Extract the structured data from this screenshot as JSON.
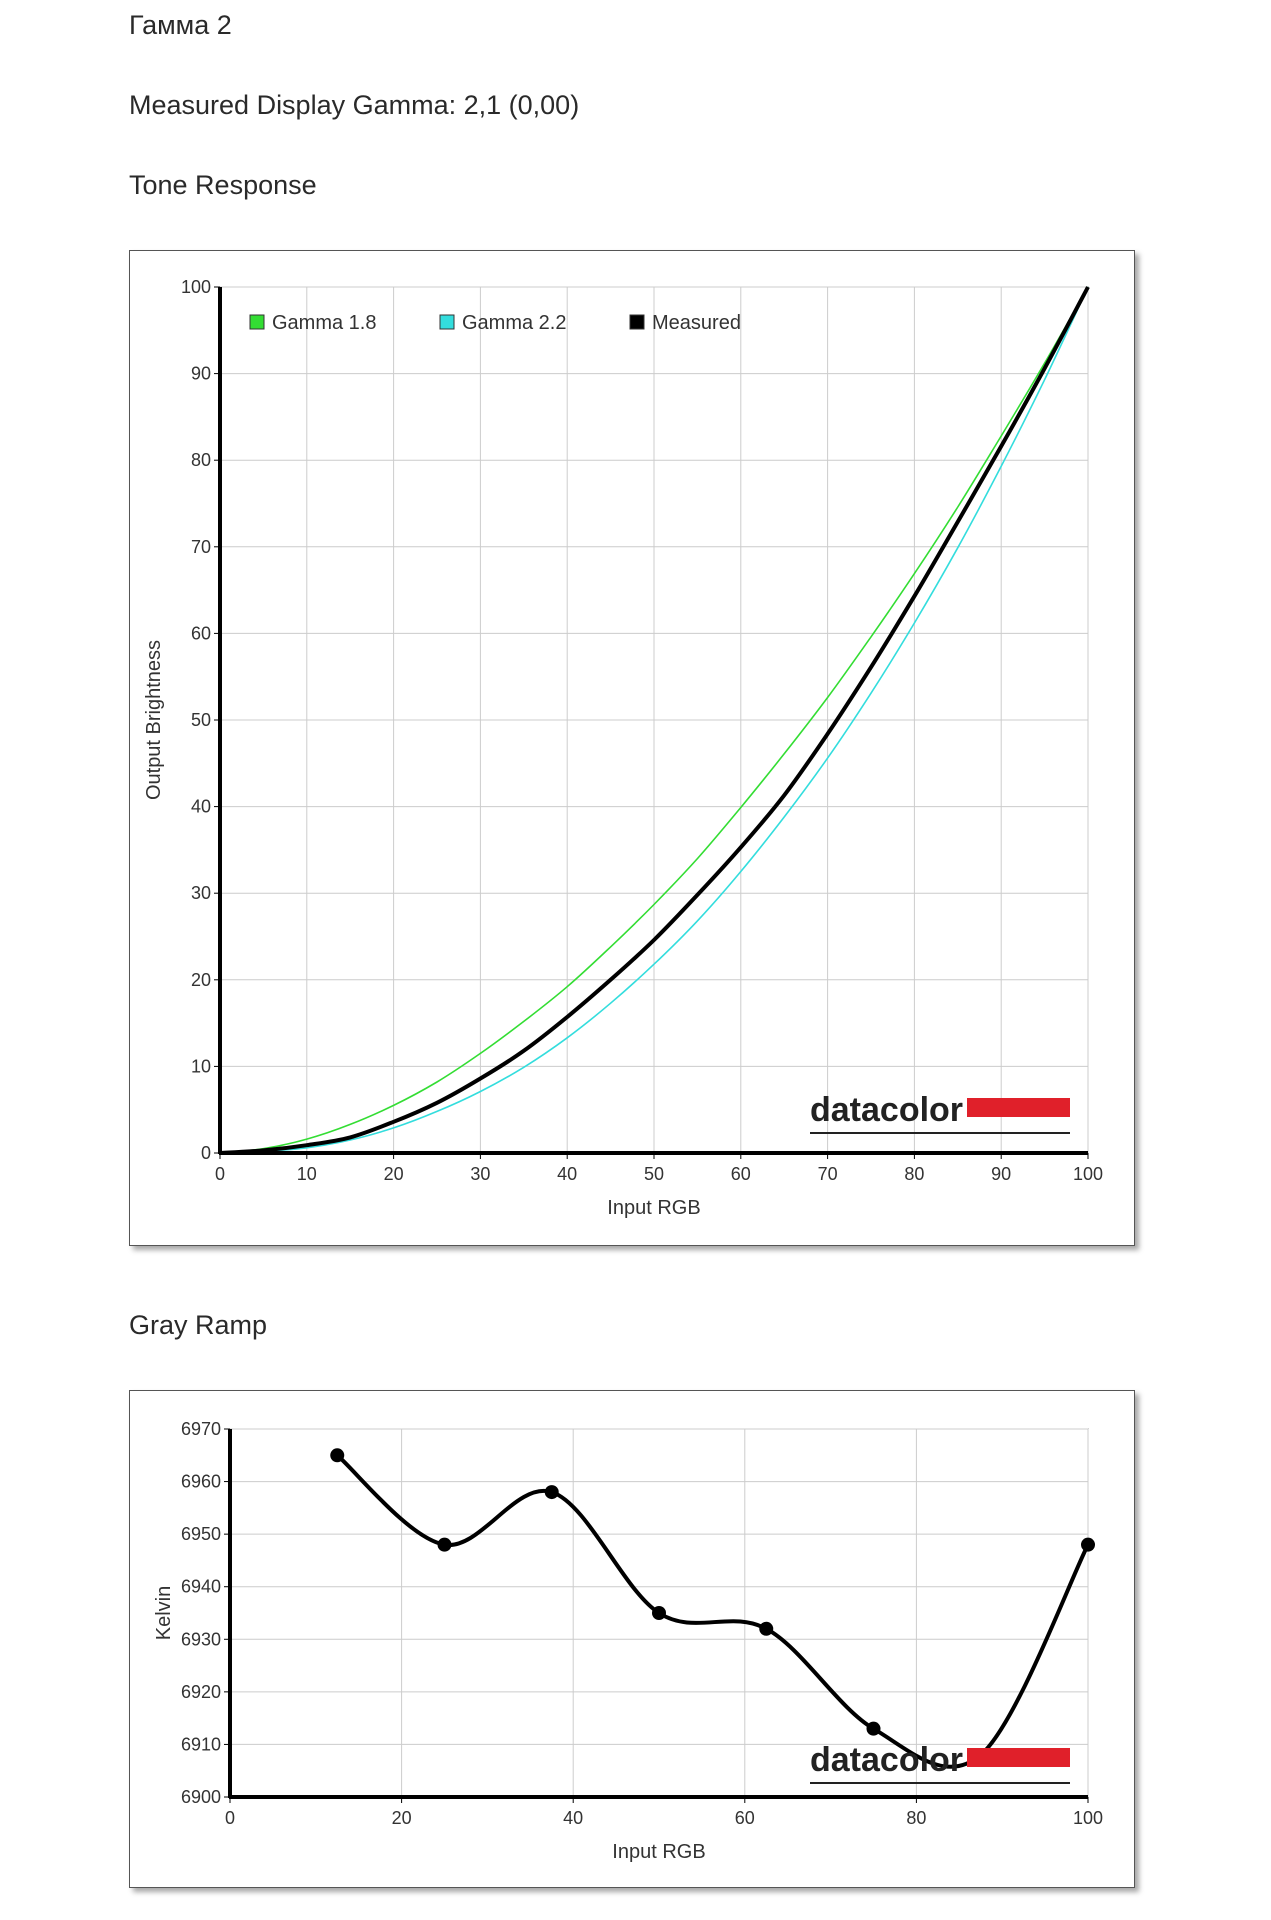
{
  "page": {
    "title": "Гамма 2",
    "measured_gamma": "Measured Display Gamma: 2,1 (0,00)",
    "tone_heading": "Tone Response",
    "gray_heading": "Gray Ramp"
  },
  "logo": {
    "text": "datacolor",
    "bar_color": "#e0202a"
  },
  "chart_data": [
    {
      "type": "line",
      "name": "tone-response",
      "xlabel": "Input RGB",
      "ylabel": "Output Brightness",
      "xlim": [
        0,
        100
      ],
      "ylim": [
        0,
        100
      ],
      "xticks": [
        0,
        10,
        20,
        30,
        40,
        50,
        60,
        70,
        80,
        90,
        100
      ],
      "yticks": [
        0,
        10,
        20,
        30,
        40,
        50,
        60,
        70,
        80,
        90,
        100
      ],
      "grid": true,
      "legend": "top-left",
      "x": [
        0,
        5,
        10,
        15,
        20,
        25,
        30,
        35,
        40,
        45,
        50,
        55,
        60,
        65,
        70,
        75,
        80,
        85,
        90,
        95,
        100
      ],
      "series": [
        {
          "name": "Gamma 1.8",
          "color": "#33dd33",
          "values": [
            0,
            0.5,
            1.6,
            3.3,
            5.5,
            8.2,
            11.5,
            15.2,
            19.2,
            23.8,
            28.7,
            34.0,
            39.9,
            46.1,
            52.6,
            59.6,
            66.9,
            74.6,
            82.8,
            91.2,
            100
          ]
        },
        {
          "name": "Gamma 2.2",
          "color": "#33dddd",
          "values": [
            0,
            0.2,
            0.6,
            1.5,
            2.9,
            4.8,
            7.1,
            9.9,
            13.3,
            17.3,
            21.8,
            26.8,
            32.5,
            38.8,
            45.6,
            53.1,
            61.2,
            69.9,
            79.3,
            89.3,
            100
          ]
        },
        {
          "name": "Measured",
          "color": "#000000",
          "values": [
            0,
            0.3,
            0.9,
            1.8,
            3.6,
            5.8,
            8.6,
            11.8,
            15.7,
            20.0,
            24.6,
            29.8,
            35.3,
            41.3,
            48.4,
            56.1,
            64.3,
            72.9,
            81.6,
            90.6,
            100
          ]
        }
      ]
    },
    {
      "type": "line",
      "name": "gray-ramp",
      "xlabel": "Input RGB",
      "ylabel": "Kelvin",
      "xlim": [
        0,
        100
      ],
      "ylim": [
        6900,
        6970
      ],
      "xticks": [
        0,
        20,
        40,
        60,
        80,
        100
      ],
      "yticks": [
        6900,
        6910,
        6920,
        6930,
        6940,
        6950,
        6960,
        6970
      ],
      "grid": true,
      "series": [
        {
          "color": "#000000",
          "x": [
            12.5,
            25,
            37.5,
            50,
            62.5,
            75,
            87.5,
            100
          ],
          "values": [
            6965,
            6948,
            6958,
            6935,
            6932,
            6913,
            6908,
            6948
          ]
        }
      ]
    }
  ]
}
